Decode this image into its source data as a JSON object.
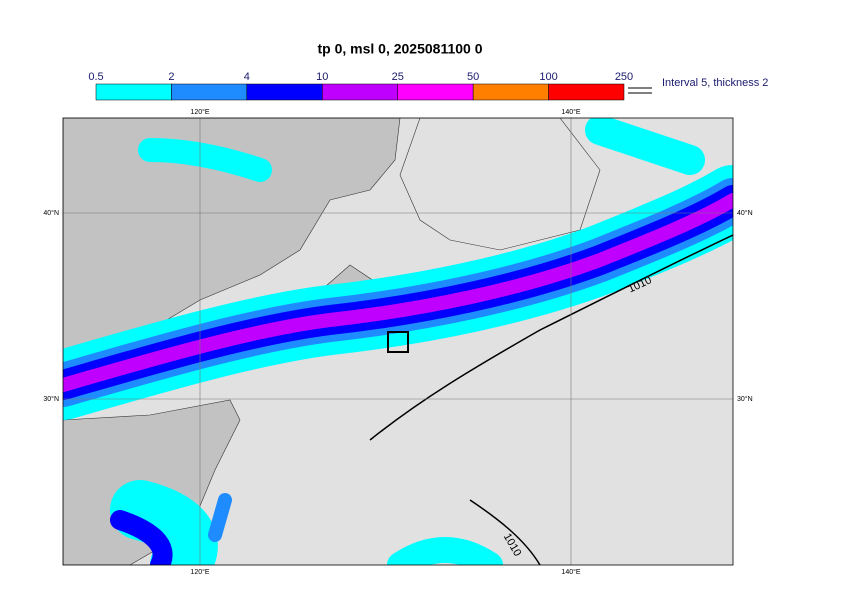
{
  "title": "tp 0, msl 0, 2025081100 0",
  "colorbar": {
    "levels": [
      "0.5",
      "2",
      "4",
      "10",
      "25",
      "50",
      "100",
      "250"
    ],
    "colors": [
      "#00ffff",
      "#1e8cff",
      "#0000ff",
      "#c000ff",
      "#ff00ff",
      "#ff8000",
      "#ff0000"
    ]
  },
  "contour_legend": "Interval 5, thickness 2",
  "lon_labels": [
    "120°E",
    "140°E"
  ],
  "lat_labels": [
    "40°N",
    "30°N"
  ],
  "contour_label": "1010"
}
